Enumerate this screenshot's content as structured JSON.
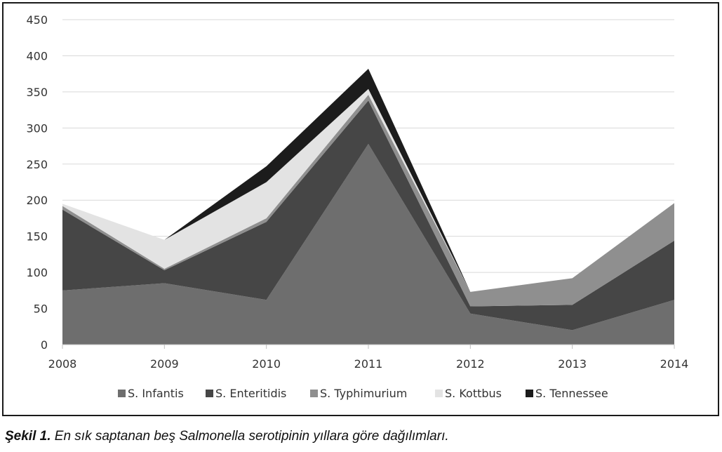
{
  "chart_data": {
    "type": "area",
    "stacked": true,
    "x": [
      "2008",
      "2009",
      "2010",
      "2011",
      "2012",
      "2013",
      "2014"
    ],
    "ylim": [
      0,
      450
    ],
    "yticks": [
      0,
      50,
      100,
      150,
      200,
      250,
      300,
      350,
      400,
      450
    ],
    "grid": true,
    "legend_position": "bottom",
    "series": [
      {
        "name": "S. Infantis",
        "color": "#6e6e6e",
        "values": [
          75,
          85,
          62,
          278,
          43,
          20,
          62
        ]
      },
      {
        "name": "S. Enteritidis",
        "color": "#464646",
        "values": [
          112,
          18,
          108,
          60,
          10,
          35,
          82
        ]
      },
      {
        "name": "S. Typhimurium",
        "color": "#8f8f8f",
        "values": [
          5,
          2,
          5,
          8,
          20,
          37,
          52
        ]
      },
      {
        "name": "S. Kottbus",
        "color": "#e3e3e3",
        "values": [
          3,
          40,
          50,
          8,
          0,
          0,
          0
        ]
      },
      {
        "name": "S. Tennessee",
        "color": "#1c1c1c",
        "values": [
          0,
          0,
          22,
          28,
          0,
          0,
          0
        ]
      }
    ]
  },
  "caption": {
    "label": "Şekil 1.",
    "text": " En sık saptanan beş Salmonella serotipinin yıllara göre dağılımları."
  }
}
